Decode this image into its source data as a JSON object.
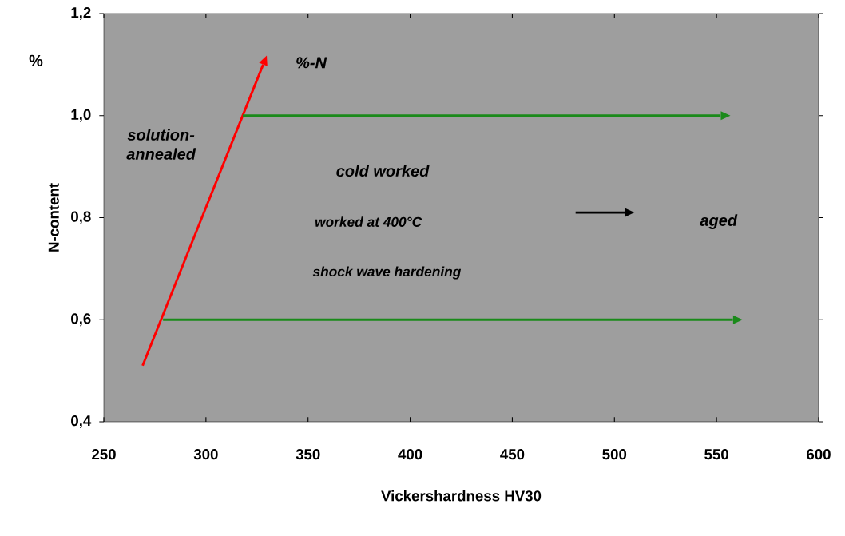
{
  "chart_data": {
    "type": "line",
    "xlabel": "Vickershardness  HV30",
    "ylabel": "N-content",
    "xlim": [
      250,
      600
    ],
    "ylim": [
      0.4,
      1.2
    ],
    "xticks": [
      250,
      300,
      350,
      400,
      450,
      500,
      550,
      600
    ],
    "yticks": [
      {
        "value": 0.4,
        "label": "0,4"
      },
      {
        "value": 0.6,
        "label": "0,6"
      },
      {
        "value": 0.8,
        "label": "0,8"
      },
      {
        "value": 1.0,
        "label": "1,0"
      },
      {
        "value": 1.2,
        "label": "1,2"
      }
    ],
    "marker": "none",
    "series": [
      {
        "color": "#ff0000",
        "x": [
          269,
          328
        ],
        "values": [
          0.51,
          1.1
        ]
      },
      {
        "color": "#1a8a1a",
        "x": [
          318,
          552
        ],
        "values": [
          1.0,
          1.0
        ]
      },
      {
        "color": "#1a8a1a",
        "x": [
          279,
          558
        ],
        "values": [
          0.6,
          0.6
        ]
      },
      {
        "color": "#000000",
        "x": [
          481,
          505
        ],
        "values": [
          0.81,
          0.81
        ]
      }
    ],
    "annotations": [
      "%",
      "%-N",
      "solution-annealed",
      "cold worked",
      "worked at 400°C",
      "shock wave hardening",
      "aged"
    ]
  }
}
